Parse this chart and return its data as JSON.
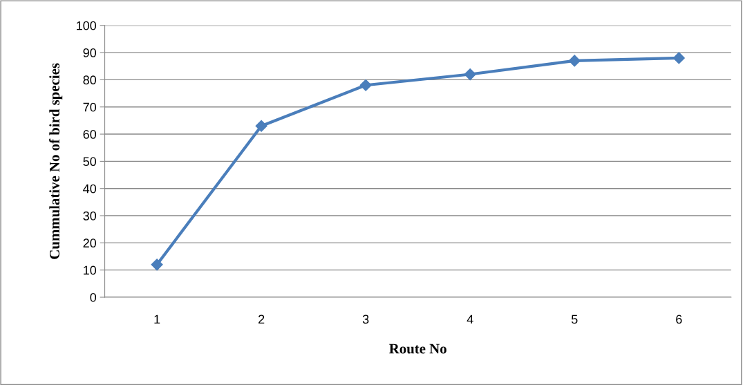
{
  "chart_data": {
    "type": "line",
    "xlabel": "Route No",
    "ylabel": "Cummulative No of bird species",
    "categories": [
      "1",
      "2",
      "3",
      "4",
      "5",
      "6"
    ],
    "series": [
      {
        "color": "#4a7ebb",
        "values": [
          12,
          63,
          78,
          82,
          87,
          88
        ]
      }
    ],
    "ylim": [
      0,
      100
    ],
    "yticks": [
      0,
      10,
      20,
      30,
      40,
      50,
      60,
      70,
      80,
      90,
      100
    ],
    "grid": "y",
    "marker": "diamond",
    "line_style": "solid"
  }
}
